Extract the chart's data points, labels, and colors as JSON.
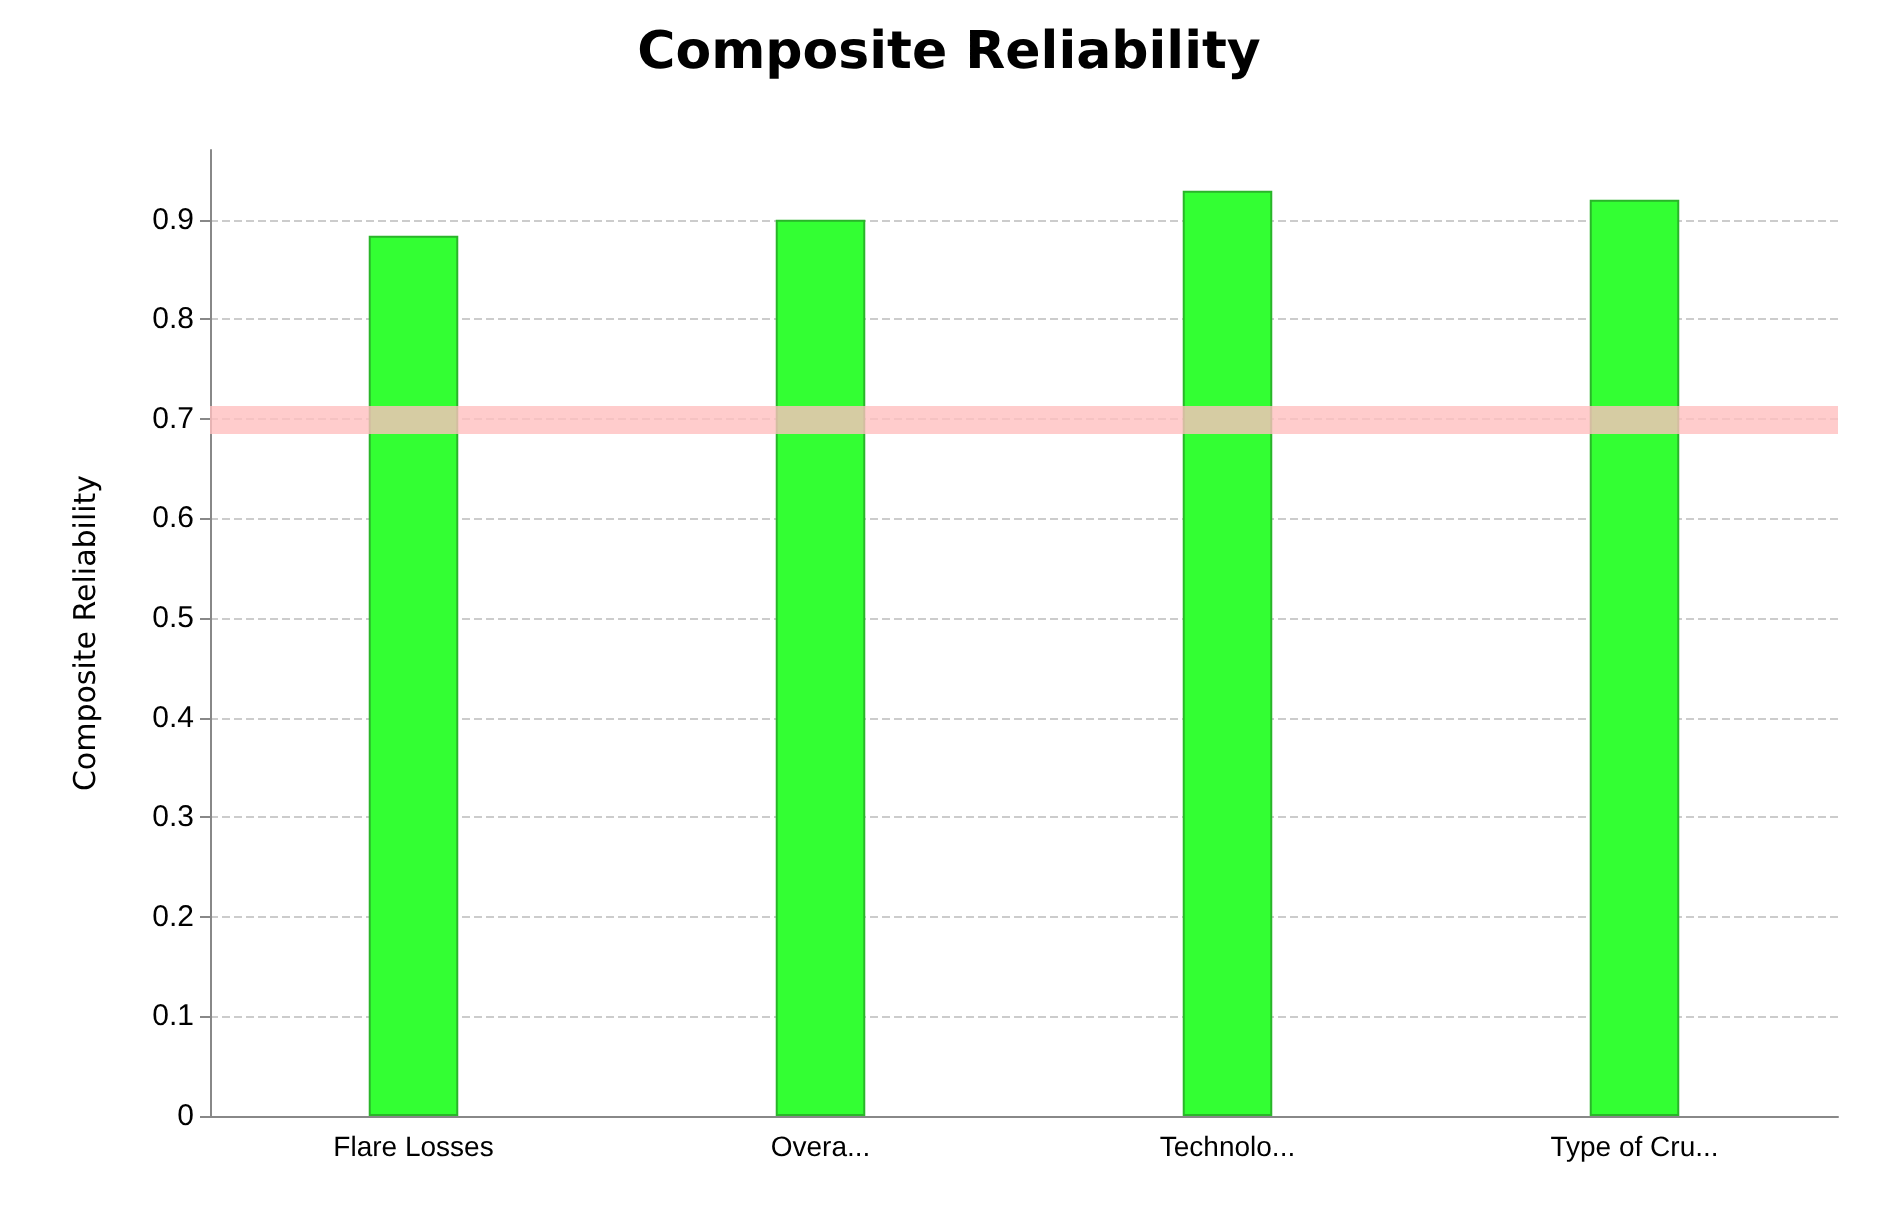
{
  "chart_data": {
    "type": "bar",
    "title": "Composite Reliability",
    "ylabel": "Composite Reliability",
    "categories": [
      "Flare Losses",
      "Overa...",
      "Technolo...",
      "Type of Cru..."
    ],
    "values": [
      0.884,
      0.9,
      0.929,
      0.92
    ],
    "color": "#33ff33",
    "ylim": [
      0,
      0.97
    ],
    "yticks": [
      0,
      0.1,
      0.2,
      0.3,
      0.4,
      0.5,
      0.6,
      0.7,
      0.8,
      0.9
    ],
    "grid": "y",
    "ref_lines": [
      {
        "axis": "y",
        "value": 0.7,
        "color": "#ffbfbf"
      }
    ]
  }
}
